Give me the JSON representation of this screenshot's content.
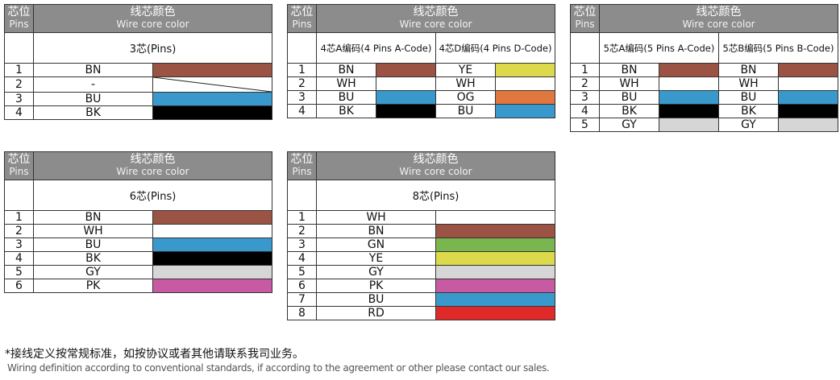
{
  "colors": {
    "BN": "#9b5444",
    "WH": "#ffffff",
    "BU": "#3a99cc",
    "BK": "#000000",
    "YE": "#dcd94a",
    "OG": "#e0773f",
    "GY": "#d6d6d6",
    "GN": "#7ab650",
    "PK": "#c75aa2",
    "RD": "#e02a2a",
    "header": "#8c8c8c"
  },
  "tables": [
    {
      "pins_cn": "芯位",
      "pins_en": "Pins",
      "title_cn": "线芯颜色",
      "title_en": "Wire core color",
      "groups": [
        {
          "label": "3芯(Pins)"
        }
      ],
      "rows": [
        {
          "pin": "1",
          "wires": [
            {
              "code": "BN",
              "color": "BN"
            }
          ]
        },
        {
          "pin": "2",
          "wires": [
            {
              "code": "-",
              "color": "none"
            }
          ]
        },
        {
          "pin": "3",
          "wires": [
            {
              "code": "BU",
              "color": "BU"
            }
          ]
        },
        {
          "pin": "4",
          "wires": [
            {
              "code": "BK",
              "color": "BK"
            }
          ]
        }
      ]
    },
    {
      "pins_cn": "芯位",
      "pins_en": "Pins",
      "title_cn": "线芯颜色",
      "title_en": "Wire core color",
      "groups": [
        {
          "label": "4芯A编码(4 Pins A-Code)"
        },
        {
          "label": "4芯D编码(4 Pins D-Code)"
        }
      ],
      "rows": [
        {
          "pin": "1",
          "wires": [
            {
              "code": "BN",
              "color": "BN"
            },
            {
              "code": "YE",
              "color": "YE"
            }
          ]
        },
        {
          "pin": "2",
          "wires": [
            {
              "code": "WH",
              "color": "WH"
            },
            {
              "code": "WH",
              "color": "WH"
            }
          ]
        },
        {
          "pin": "3",
          "wires": [
            {
              "code": "BU",
              "color": "BU"
            },
            {
              "code": "OG",
              "color": "OG"
            }
          ]
        },
        {
          "pin": "4",
          "wires": [
            {
              "code": "BK",
              "color": "BK"
            },
            {
              "code": "BU",
              "color": "BU"
            }
          ]
        }
      ]
    },
    {
      "pins_cn": "芯位",
      "pins_en": "Pins",
      "title_cn": "线芯颜色",
      "title_en": "Wire core color",
      "groups": [
        {
          "label": "5芯A编码(5 Pins A-Code)"
        },
        {
          "label": "5芯B编码(5 Pins B-Code)"
        }
      ],
      "rows": [
        {
          "pin": "1",
          "wires": [
            {
              "code": "BN",
              "color": "BN"
            },
            {
              "code": "BN",
              "color": "BN"
            }
          ]
        },
        {
          "pin": "2",
          "wires": [
            {
              "code": "WH",
              "color": "WH"
            },
            {
              "code": "WH",
              "color": "WH"
            }
          ]
        },
        {
          "pin": "3",
          "wires": [
            {
              "code": "BU",
              "color": "BU"
            },
            {
              "code": "BU",
              "color": "BU"
            }
          ]
        },
        {
          "pin": "4",
          "wires": [
            {
              "code": "BK",
              "color": "BK"
            },
            {
              "code": "BK",
              "color": "BK"
            }
          ]
        },
        {
          "pin": "5",
          "wires": [
            {
              "code": "GY",
              "color": "GY"
            },
            {
              "code": "GY",
              "color": "GY"
            }
          ]
        }
      ]
    },
    {
      "pins_cn": "芯位",
      "pins_en": "Pins",
      "title_cn": "线芯颜色",
      "title_en": "Wire core color",
      "groups": [
        {
          "label": "6芯(Pins)"
        }
      ],
      "rows": [
        {
          "pin": "1",
          "wires": [
            {
              "code": "BN",
              "color": "BN"
            }
          ]
        },
        {
          "pin": "2",
          "wires": [
            {
              "code": "WH",
              "color": "WH"
            }
          ]
        },
        {
          "pin": "3",
          "wires": [
            {
              "code": "BU",
              "color": "BU"
            }
          ]
        },
        {
          "pin": "4",
          "wires": [
            {
              "code": "BK",
              "color": "BK"
            }
          ]
        },
        {
          "pin": "5",
          "wires": [
            {
              "code": "GY",
              "color": "GY"
            }
          ]
        },
        {
          "pin": "6",
          "wires": [
            {
              "code": "PK",
              "color": "PK"
            }
          ]
        }
      ]
    },
    {
      "pins_cn": "芯位",
      "pins_en": "Pins",
      "title_cn": "线芯颜色",
      "title_en": "Wire core color",
      "groups": [
        {
          "label": "8芯(Pins)"
        }
      ],
      "rows": [
        {
          "pin": "1",
          "wires": [
            {
              "code": "WH",
              "color": "WH"
            }
          ]
        },
        {
          "pin": "2",
          "wires": [
            {
              "code": "BN",
              "color": "BN"
            }
          ]
        },
        {
          "pin": "3",
          "wires": [
            {
              "code": "GN",
              "color": "GN"
            }
          ]
        },
        {
          "pin": "4",
          "wires": [
            {
              "code": "YE",
              "color": "YE"
            }
          ]
        },
        {
          "pin": "5",
          "wires": [
            {
              "code": "GY",
              "color": "GY"
            }
          ]
        },
        {
          "pin": "6",
          "wires": [
            {
              "code": "PK",
              "color": "PK"
            }
          ]
        },
        {
          "pin": "7",
          "wires": [
            {
              "code": "BU",
              "color": "BU"
            }
          ]
        },
        {
          "pin": "8",
          "wires": [
            {
              "code": "RD",
              "color": "RD"
            }
          ]
        }
      ]
    }
  ],
  "footnote": {
    "cn": "*接线定义按常规标准，如按协议或者其他请联系我司业务。",
    "en": "Wiring definition according to conventional standards, if according to the agreement or other please contact our sales."
  }
}
